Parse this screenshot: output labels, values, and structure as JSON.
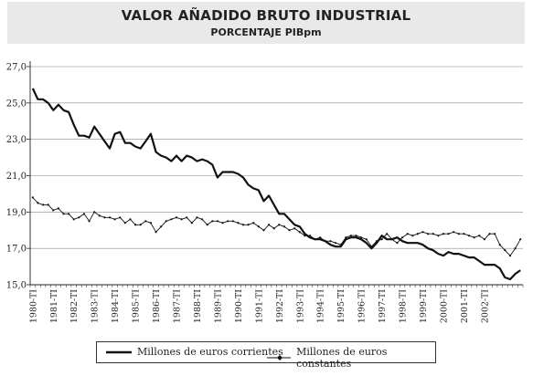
{
  "chart_data": {
    "type": "line",
    "title": "VALOR AÑADIDO BRUTO INDUSTRIAL",
    "subtitle": "PORCENTAJE PIBpm",
    "xlabel": "",
    "ylabel": "",
    "ylim": [
      15,
      27
    ],
    "yticks": [
      "15,0",
      "17,0",
      "19,0",
      "21,0",
      "23,0",
      "25,0",
      "27,0"
    ],
    "xtick_labels": [
      "1980-TI",
      "1981-TI",
      "1982-TI",
      "1983-TI",
      "1984-TI",
      "1985-TI",
      "1986-TI",
      "1987-TI",
      "1988-TI",
      "1989-TI",
      "1990-TI",
      "1991-TI",
      "1992-TI",
      "1993-TI",
      "1994-TI",
      "1995-TI",
      "1996-TI",
      "1997-TI",
      "1998-TI",
      "1999-TI",
      "2000-TI",
      "2001-TI",
      "2002-TI"
    ],
    "grid": true,
    "legend_position": "bottom",
    "x_start": "1980-TI",
    "series": [
      {
        "name": "Millones de euros corrientes",
        "style": "thick",
        "color": "#111111",
        "values": [
          25.8,
          25.2,
          25.2,
          25.0,
          24.6,
          24.9,
          24.6,
          24.5,
          23.8,
          23.2,
          23.2,
          23.1,
          23.7,
          23.3,
          22.9,
          22.5,
          23.3,
          23.4,
          22.8,
          22.8,
          22.6,
          22.5,
          22.9,
          23.3,
          22.3,
          22.1,
          22.0,
          21.8,
          22.1,
          21.8,
          22.1,
          22.0,
          21.8,
          21.9,
          21.8,
          21.6,
          20.9,
          21.2,
          21.2,
          21.2,
          21.1,
          20.9,
          20.5,
          20.3,
          20.2,
          19.6,
          19.9,
          19.4,
          18.9,
          18.9,
          18.6,
          18.3,
          18.2,
          17.8,
          17.6,
          17.5,
          17.5,
          17.4,
          17.2,
          17.1,
          17.1,
          17.5,
          17.6,
          17.6,
          17.5,
          17.3,
          17.0,
          17.3,
          17.7,
          17.5,
          17.5,
          17.6,
          17.4,
          17.3,
          17.3,
          17.3,
          17.2,
          17.0,
          16.9,
          16.7,
          16.6,
          16.8,
          16.7,
          16.7,
          16.6,
          16.5,
          16.5,
          16.3,
          16.1,
          16.1,
          16.1,
          15.9,
          15.4,
          15.3,
          15.6,
          15.8
        ]
      },
      {
        "name": "Millones de euros constantes",
        "style": "thin-marker",
        "color": "#111111",
        "values": [
          19.8,
          19.5,
          19.4,
          19.4,
          19.1,
          19.2,
          18.9,
          18.9,
          18.6,
          18.7,
          18.9,
          18.5,
          19.0,
          18.8,
          18.7,
          18.7,
          18.6,
          18.7,
          18.4,
          18.6,
          18.3,
          18.3,
          18.5,
          18.4,
          17.9,
          18.2,
          18.5,
          18.6,
          18.7,
          18.6,
          18.7,
          18.4,
          18.7,
          18.6,
          18.3,
          18.5,
          18.5,
          18.4,
          18.5,
          18.5,
          18.4,
          18.3,
          18.3,
          18.4,
          18.2,
          18.0,
          18.3,
          18.1,
          18.3,
          18.2,
          18.0,
          18.1,
          17.9,
          17.7,
          17.7,
          17.5,
          17.6,
          17.4,
          17.4,
          17.3,
          17.2,
          17.6,
          17.7,
          17.7,
          17.6,
          17.5,
          17.1,
          17.4,
          17.5,
          17.8,
          17.5,
          17.3,
          17.6,
          17.8,
          17.7,
          17.8,
          17.9,
          17.8,
          17.8,
          17.7,
          17.8,
          17.8,
          17.9,
          17.8,
          17.8,
          17.7,
          17.6,
          17.7,
          17.5,
          17.8,
          17.8,
          17.2,
          16.9,
          16.6,
          17.0,
          17.5
        ]
      }
    ]
  }
}
